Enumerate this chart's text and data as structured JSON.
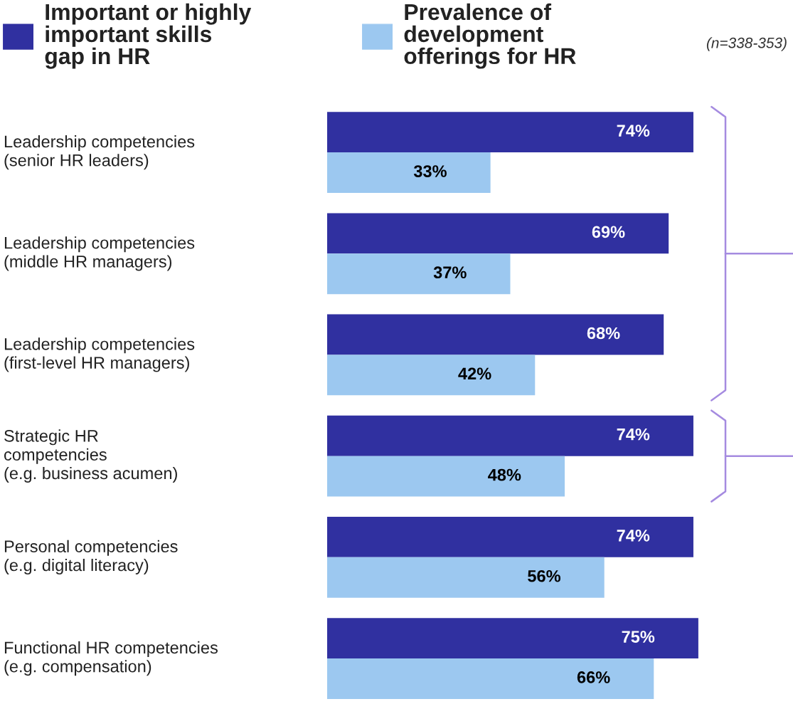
{
  "chart_data": {
    "type": "bar",
    "orientation": "horizontal",
    "categories": [
      "Leadership competencies\n(senior HR leaders)",
      "Leadership competencies\n(middle HR managers)",
      "Leadership competencies\n(first-level HR managers)",
      "Strategic HR\ncompetencies\n(e.g. business acumen)",
      "Personal competencies\n(e.g. digital literacy)",
      "Functional HR competencies\n(e.g. compensation)"
    ],
    "series": [
      {
        "name": "Important or highly\nimportant skills\ngap in HR",
        "color": "#3030a0",
        "values": [
          74,
          69,
          68,
          74,
          74,
          75
        ],
        "value_labels": [
          "74%",
          "69%",
          "68%",
          "74%",
          "74%",
          "75%"
        ]
      },
      {
        "name": "Prevalence of\ndevelopment\nofferings for HR",
        "color": "#9cc8f0",
        "values": [
          33,
          37,
          42,
          48,
          56,
          66
        ],
        "value_labels": [
          "33%",
          "37%",
          "42%",
          "48%",
          "56%",
          "66%"
        ]
      }
    ],
    "legend": "top",
    "annotations": [
      "(n=338-353)"
    ]
  }
}
